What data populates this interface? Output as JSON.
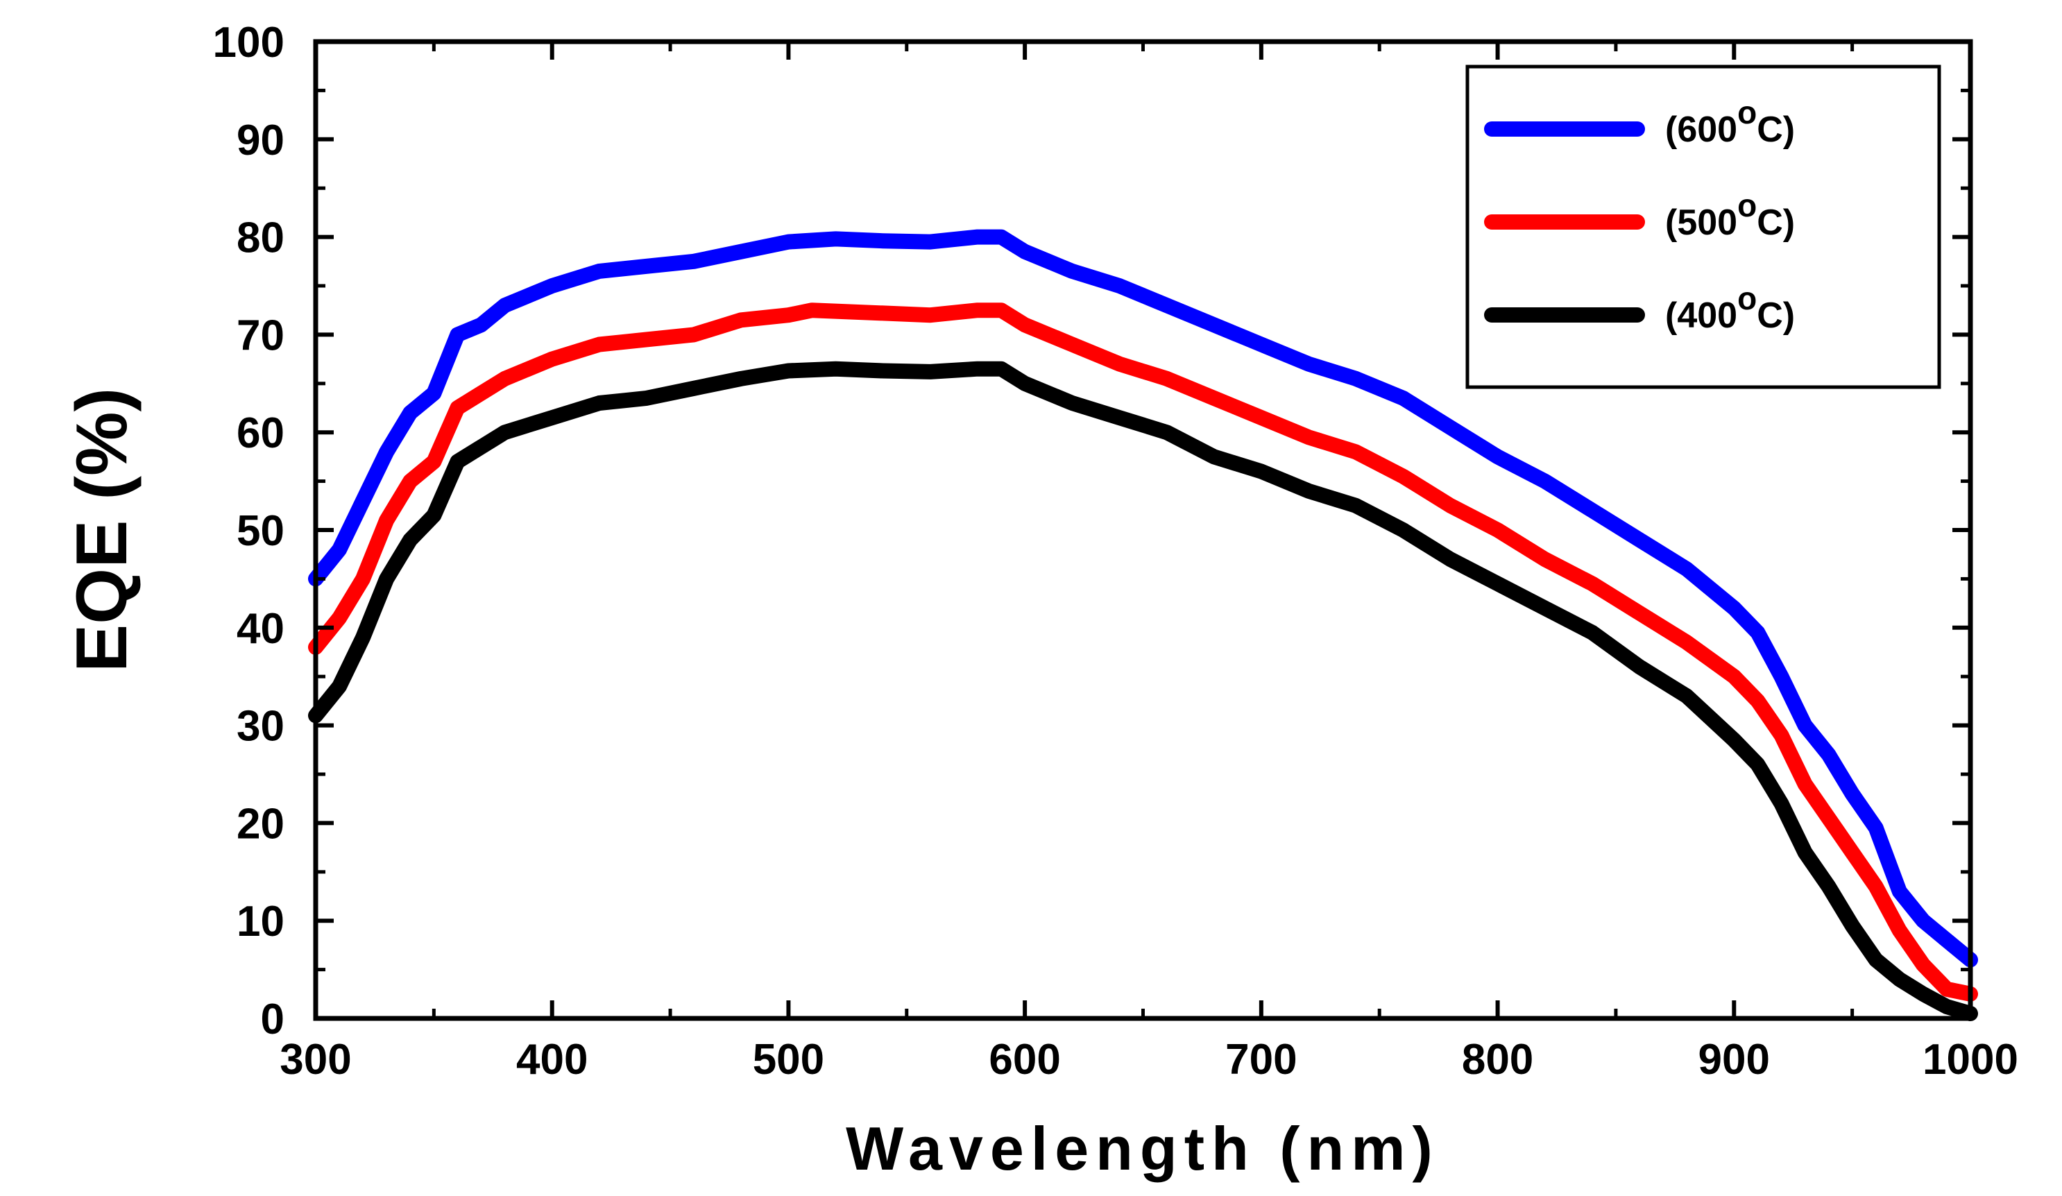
{
  "chart_data": {
    "type": "line",
    "title": "",
    "xlabel": "Wavelength (nm)",
    "ylabel": "EQE (%)",
    "xlim": [
      300,
      1000
    ],
    "ylim": [
      0,
      100
    ],
    "xticks": [
      300,
      400,
      500,
      600,
      700,
      800,
      900,
      1000
    ],
    "yticks": [
      0,
      10,
      20,
      30,
      40,
      50,
      60,
      70,
      80,
      90,
      100
    ],
    "grid": false,
    "legend_position": "top-right",
    "series": [
      {
        "name": "(600°C)",
        "label_prefix": "(600",
        "label_degree": "o",
        "label_suffix": "C)",
        "color": "#0000ff",
        "points": [
          [
            300,
            45
          ],
          [
            310,
            48
          ],
          [
            320,
            53
          ],
          [
            330,
            58
          ],
          [
            340,
            62
          ],
          [
            350,
            64
          ],
          [
            360,
            70
          ],
          [
            370,
            71
          ],
          [
            380,
            73
          ],
          [
            400,
            75
          ],
          [
            420,
            76.5
          ],
          [
            440,
            77
          ],
          [
            460,
            77.5
          ],
          [
            480,
            78.5
          ],
          [
            500,
            79.5
          ],
          [
            520,
            79.8
          ],
          [
            540,
            79.6
          ],
          [
            560,
            79.5
          ],
          [
            580,
            80
          ],
          [
            590,
            80
          ],
          [
            600,
            78.5
          ],
          [
            620,
            76.5
          ],
          [
            640,
            75
          ],
          [
            660,
            73
          ],
          [
            680,
            71
          ],
          [
            700,
            69
          ],
          [
            720,
            67
          ],
          [
            740,
            65.5
          ],
          [
            760,
            63.5
          ],
          [
            780,
            60.5
          ],
          [
            800,
            57.5
          ],
          [
            820,
            55
          ],
          [
            840,
            52
          ],
          [
            860,
            49
          ],
          [
            880,
            46
          ],
          [
            900,
            42
          ],
          [
            910,
            39.5
          ],
          [
            920,
            35
          ],
          [
            930,
            30
          ],
          [
            940,
            27
          ],
          [
            950,
            23
          ],
          [
            960,
            19.5
          ],
          [
            970,
            13
          ],
          [
            980,
            10
          ],
          [
            990,
            8
          ],
          [
            1000,
            6
          ]
        ]
      },
      {
        "name": "(500°C)",
        "label_prefix": "(500",
        "label_degree": "o",
        "label_suffix": "C)",
        "color": "#ff0000",
        "points": [
          [
            300,
            38
          ],
          [
            310,
            41
          ],
          [
            320,
            45
          ],
          [
            330,
            51
          ],
          [
            340,
            55
          ],
          [
            350,
            57
          ],
          [
            360,
            62.5
          ],
          [
            370,
            64
          ],
          [
            380,
            65.5
          ],
          [
            400,
            67.5
          ],
          [
            420,
            69
          ],
          [
            440,
            69.5
          ],
          [
            460,
            70
          ],
          [
            480,
            71.5
          ],
          [
            500,
            72
          ],
          [
            510,
            72.5
          ],
          [
            540,
            72.2
          ],
          [
            560,
            72
          ],
          [
            580,
            72.5
          ],
          [
            590,
            72.5
          ],
          [
            600,
            71
          ],
          [
            620,
            69
          ],
          [
            640,
            67
          ],
          [
            660,
            65.5
          ],
          [
            680,
            63.5
          ],
          [
            700,
            61.5
          ],
          [
            720,
            59.5
          ],
          [
            740,
            58
          ],
          [
            760,
            55.5
          ],
          [
            780,
            52.5
          ],
          [
            800,
            50
          ],
          [
            820,
            47
          ],
          [
            840,
            44.5
          ],
          [
            860,
            41.5
          ],
          [
            880,
            38.5
          ],
          [
            900,
            35
          ],
          [
            910,
            32.5
          ],
          [
            920,
            29
          ],
          [
            930,
            24
          ],
          [
            940,
            20.5
          ],
          [
            950,
            17
          ],
          [
            960,
            13.5
          ],
          [
            970,
            9
          ],
          [
            980,
            5.5
          ],
          [
            990,
            3
          ],
          [
            1000,
            2.5
          ]
        ]
      },
      {
        "name": "(400°C)",
        "label_prefix": "(400",
        "label_degree": "o",
        "label_suffix": "C)",
        "color": "#000000",
        "points": [
          [
            300,
            31
          ],
          [
            310,
            34
          ],
          [
            320,
            39
          ],
          [
            330,
            45
          ],
          [
            340,
            49
          ],
          [
            350,
            51.5
          ],
          [
            360,
            57
          ],
          [
            370,
            58.5
          ],
          [
            380,
            60
          ],
          [
            400,
            61.5
          ],
          [
            420,
            63
          ],
          [
            440,
            63.5
          ],
          [
            460,
            64.5
          ],
          [
            480,
            65.5
          ],
          [
            500,
            66.3
          ],
          [
            520,
            66.5
          ],
          [
            540,
            66.3
          ],
          [
            560,
            66.2
          ],
          [
            580,
            66.5
          ],
          [
            590,
            66.5
          ],
          [
            600,
            65
          ],
          [
            620,
            63
          ],
          [
            640,
            61.5
          ],
          [
            660,
            60
          ],
          [
            680,
            57.5
          ],
          [
            700,
            56
          ],
          [
            720,
            54
          ],
          [
            740,
            52.5
          ],
          [
            760,
            50
          ],
          [
            780,
            47
          ],
          [
            800,
            44.5
          ],
          [
            820,
            42
          ],
          [
            840,
            39.5
          ],
          [
            860,
            36
          ],
          [
            880,
            33
          ],
          [
            900,
            28.5
          ],
          [
            910,
            26
          ],
          [
            920,
            22
          ],
          [
            930,
            17
          ],
          [
            940,
            13.5
          ],
          [
            950,
            9.5
          ],
          [
            960,
            6
          ],
          [
            970,
            4
          ],
          [
            980,
            2.5
          ],
          [
            990,
            1.2
          ],
          [
            1000,
            0.5
          ]
        ]
      }
    ]
  }
}
